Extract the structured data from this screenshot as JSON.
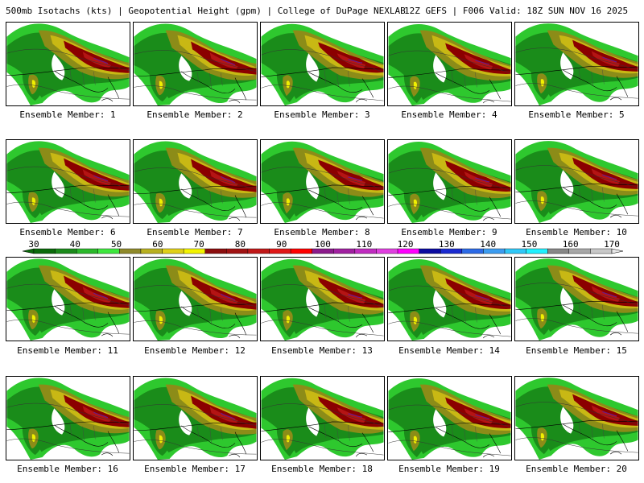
{
  "header": {
    "left_text": "500mb Isotachs (kts) | Geopotential Height (gpm) | College of DuPage NEXLAB",
    "right_text": "12Z GEFS | F006 Valid: 18Z SUN NOV 16 2025"
  },
  "caption_prefix": "Ensemble Member: ",
  "members": [
    {
      "id": 1,
      "label": "Ensemble Member: 1"
    },
    {
      "id": 2,
      "label": "Ensemble Member: 2"
    },
    {
      "id": 3,
      "label": "Ensemble Member: 3"
    },
    {
      "id": 4,
      "label": "Ensemble Member: 4"
    },
    {
      "id": 5,
      "label": "Ensemble Member: 5"
    },
    {
      "id": 6,
      "label": "Ensemble Member: 6"
    },
    {
      "id": 7,
      "label": "Ensemble Member: 7"
    },
    {
      "id": 8,
      "label": "Ensemble Member: 8"
    },
    {
      "id": 9,
      "label": "Ensemble Member: 9"
    },
    {
      "id": 10,
      "label": "Ensemble Member: 10"
    },
    {
      "id": 11,
      "label": "Ensemble Member: 11"
    },
    {
      "id": 12,
      "label": "Ensemble Member: 12"
    },
    {
      "id": 13,
      "label": "Ensemble Member: 13"
    },
    {
      "id": 14,
      "label": "Ensemble Member: 14"
    },
    {
      "id": 15,
      "label": "Ensemble Member: 15"
    },
    {
      "id": 16,
      "label": "Ensemble Member: 16"
    },
    {
      "id": 17,
      "label": "Ensemble Member: 17"
    },
    {
      "id": 18,
      "label": "Ensemble Member: 18"
    },
    {
      "id": 19,
      "label": "Ensemble Member: 19"
    },
    {
      "id": 20,
      "label": "Ensemble Member: 20"
    }
  ],
  "colorbar": {
    "tick_labels": [
      "30",
      "40",
      "50",
      "60",
      "70",
      "80",
      "90",
      "100",
      "110",
      "120",
      "130",
      "140",
      "150",
      "160",
      "170"
    ],
    "colors": [
      "#0a6a0a",
      "#1b8a1b",
      "#2ab82a",
      "#3ee83e",
      "#8f8a2a",
      "#b8b020",
      "#e0d018",
      "#f4f400",
      "#8b0d0d",
      "#a01212",
      "#c01818",
      "#e01818",
      "#ff0000",
      "#8b1a8b",
      "#a020a0",
      "#c02cc0",
      "#e040e0",
      "#ff00ff",
      "#0a0aa0",
      "#1a2ad0",
      "#2c6ae6",
      "#3c9cf0",
      "#30c8f8",
      "#20f0ff",
      "#888888",
      "#a8a8a8",
      "#c8c8c8"
    ]
  },
  "map_colors": {
    "green_dark": "#1a8c1a",
    "green": "#2ec82e",
    "green_light": "#40ff40",
    "olive": "#8c8c18",
    "yellow": "#f0f000",
    "gold": "#c8b814",
    "red_dark": "#8b0000",
    "red": "#b41414",
    "purple": "#6a1a8a"
  }
}
